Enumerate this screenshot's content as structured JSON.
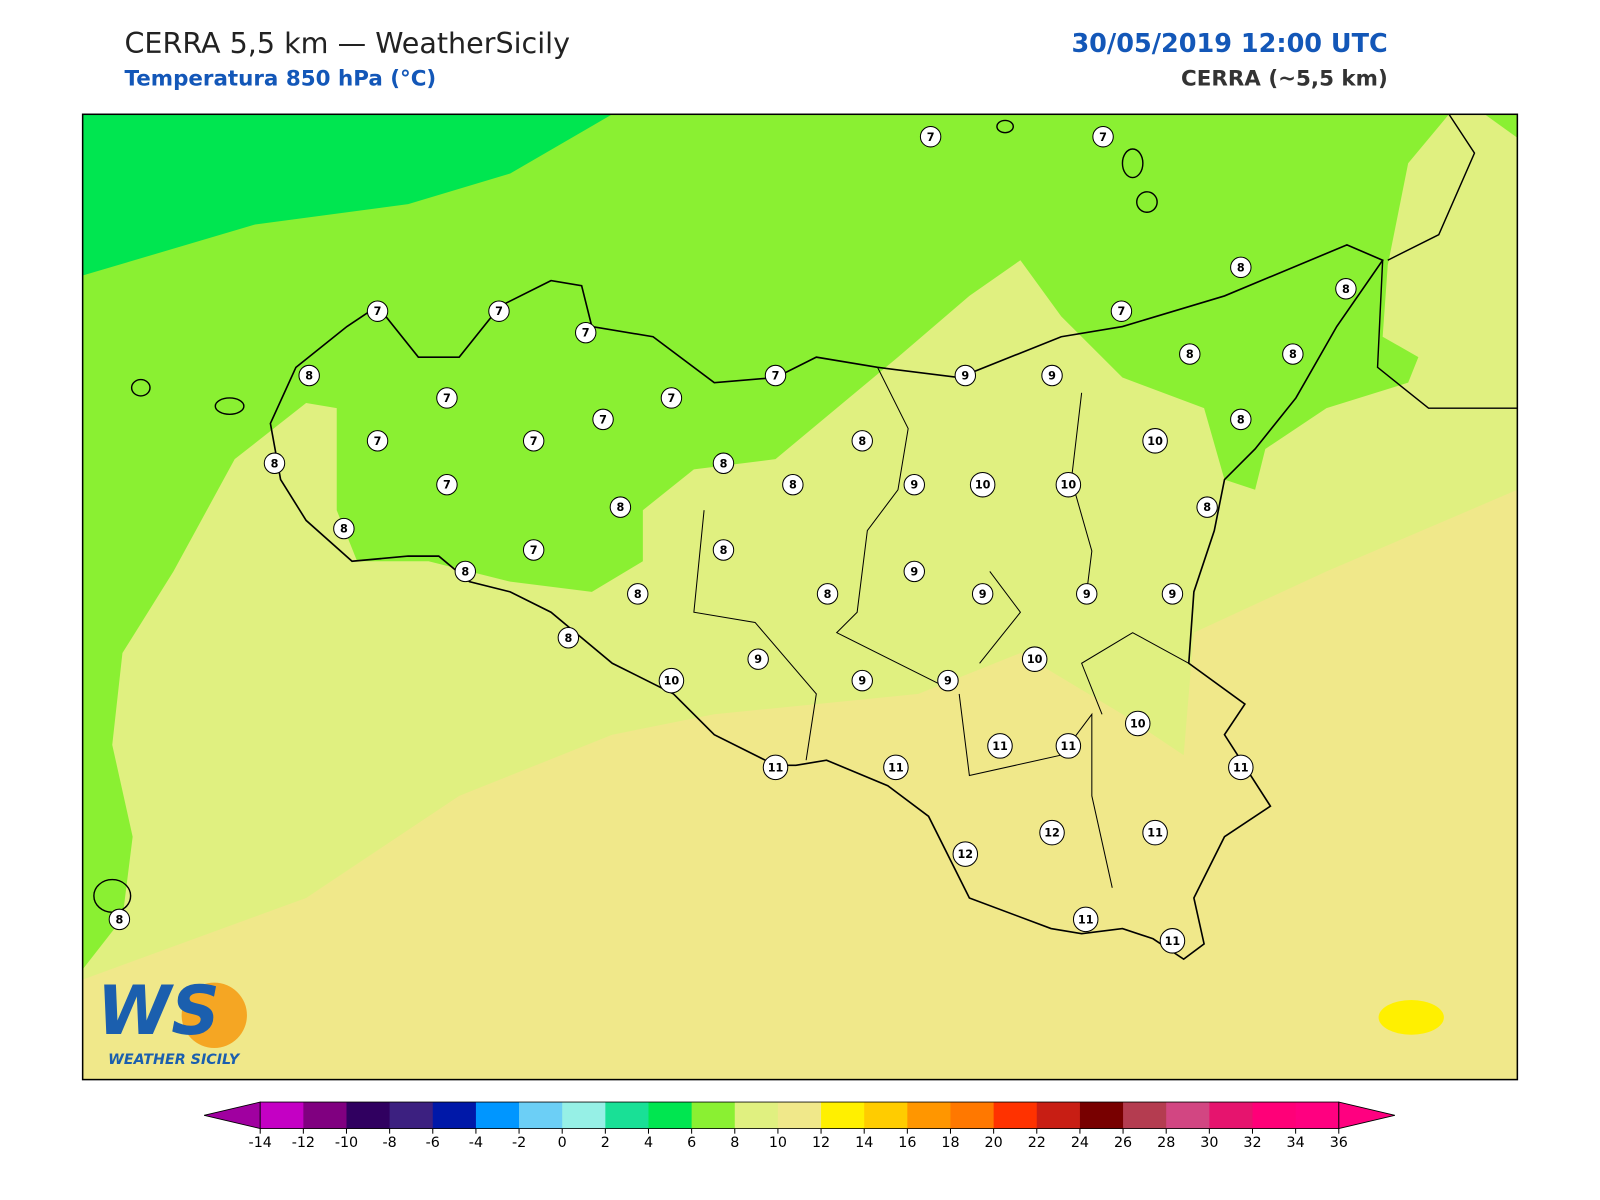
{
  "header": {
    "title": "CERRA 5,5 km — WeatherSicily",
    "subtitle": "Temperatura 850 hPa (°C)",
    "date": "30/05/2019 12:00 UTC",
    "model": "CERRA (~5,5 km)"
  },
  "logo": {
    "initials": "WS",
    "name": "WEATHER SICILY"
  },
  "stations": [
    7,
    7,
    8,
    8,
    7,
    8,
    8,
    9,
    9,
    8,
    10,
    8,
    10,
    10,
    9,
    8,
    7,
    7,
    7,
    8,
    7,
    7,
    7,
    7,
    7,
    7,
    8,
    7,
    8,
    8,
    8,
    8,
    7,
    8,
    8,
    8,
    8,
    9,
    9,
    9,
    9,
    8,
    9,
    10,
    10,
    9,
    9,
    10,
    11,
    11,
    11,
    11,
    11,
    12,
    11,
    12,
    11,
    11,
    8
  ],
  "colorbar": {
    "ticks": [
      -14,
      -12,
      -10,
      -8,
      -6,
      -4,
      -2,
      0,
      2,
      4,
      6,
      8,
      10,
      12,
      14,
      16,
      18,
      20,
      22,
      24,
      26,
      28,
      30,
      32,
      34,
      36
    ],
    "colors": [
      "#c400c4",
      "#800080",
      "#300060",
      "#3c2080",
      "#0018a8",
      "#0096ff",
      "#6ccff6",
      "#96f0e6",
      "#19e096",
      "#00e650",
      "#8af032",
      "#e0f080",
      "#f0e88a",
      "#fff000",
      "#ffcc00",
      "#ff9600",
      "#ff7800",
      "#ff3200",
      "#c81e14",
      "#780000",
      "#b43c50",
      "#d24682",
      "#e6146e",
      "#ff0078",
      "#ff0080"
    ],
    "under_color": "#a000a0",
    "over_color": "#ff0080"
  }
}
